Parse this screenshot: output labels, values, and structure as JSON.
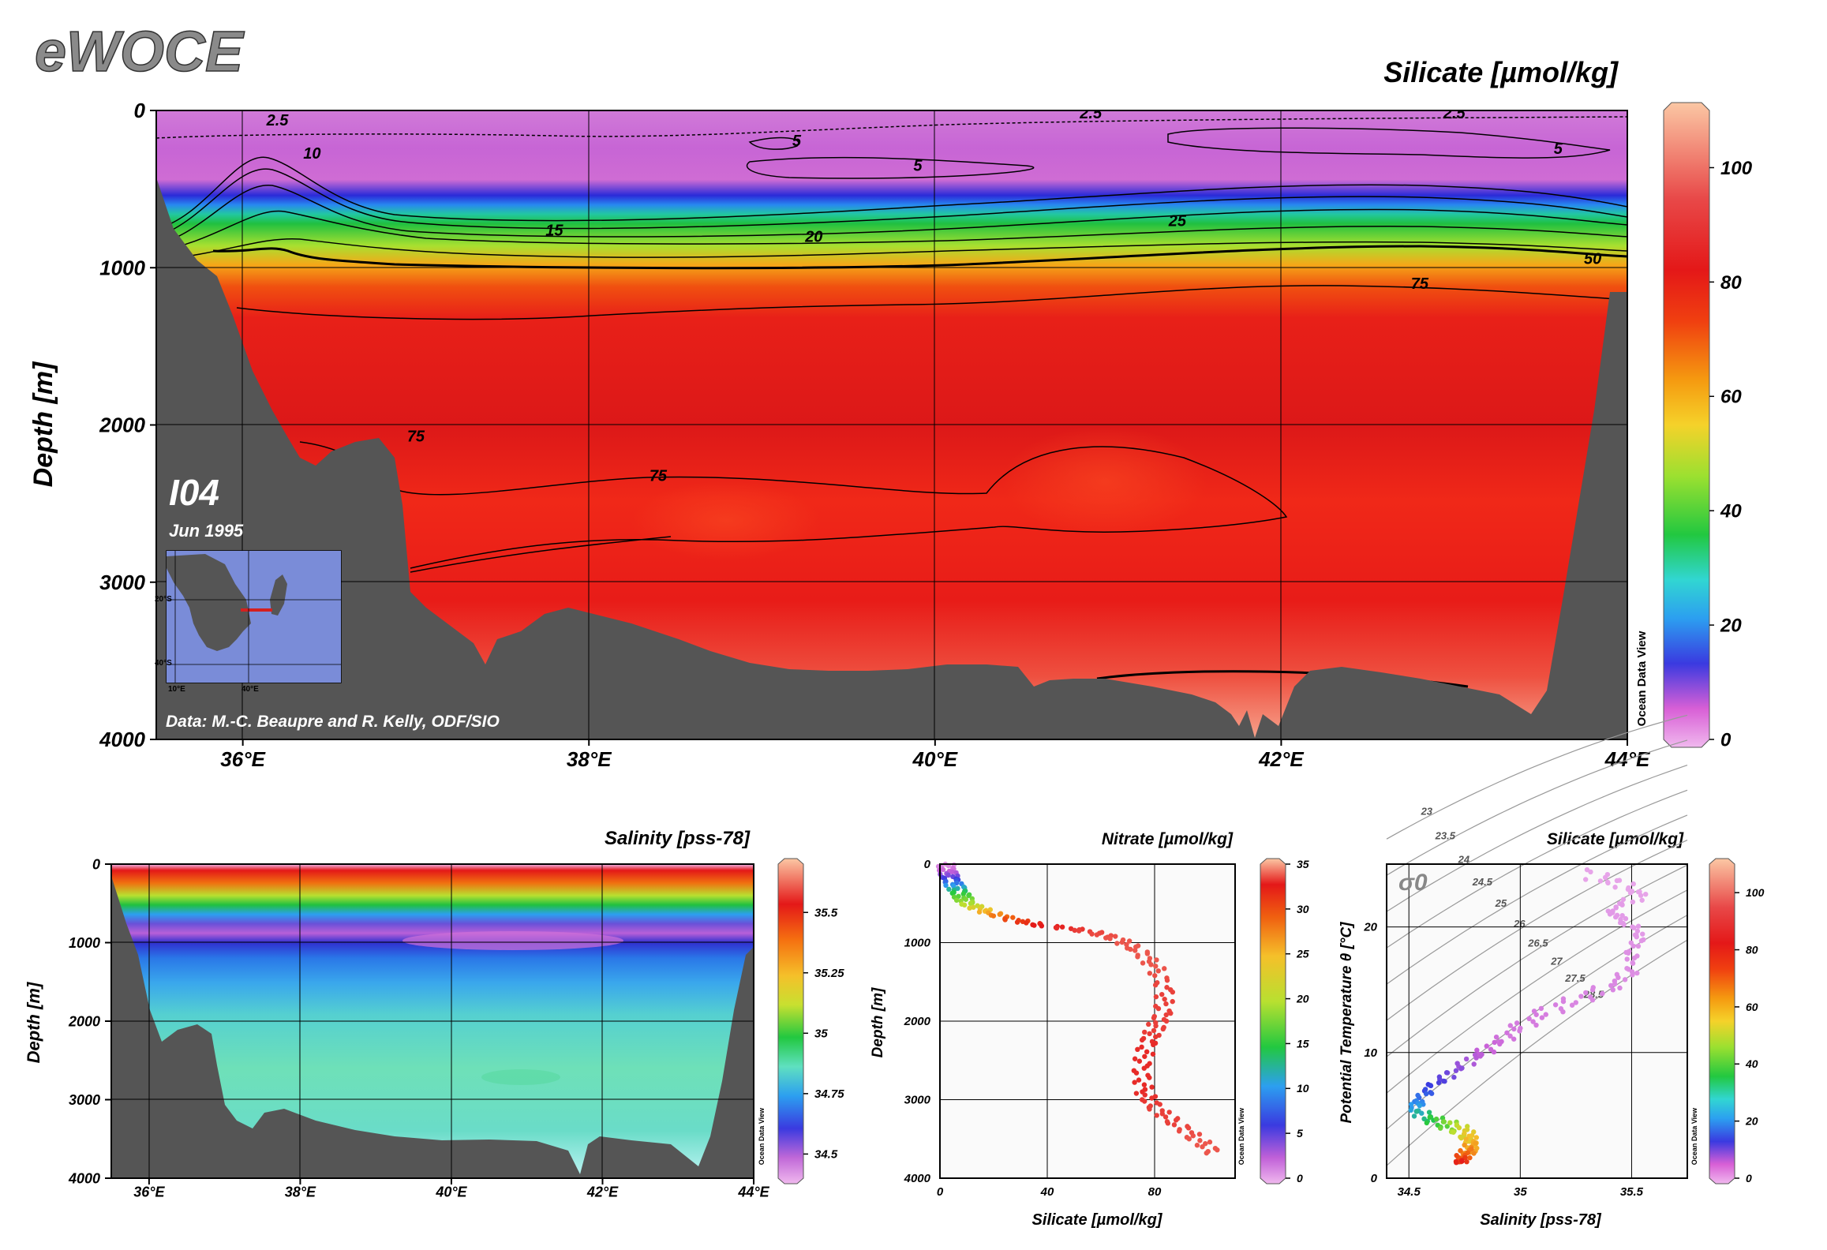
{
  "app": {
    "logo": "eWOCE",
    "section_name": "I04",
    "section_date": "Jun 1995",
    "credit": "Data: M.-C. Beaupre and R. Kelly, ODF/SIO",
    "odv_label": "Ocean Data View"
  },
  "colors": {
    "land": "#555555",
    "inset_ocean": "#7a8cd8",
    "inset_land": "#555555",
    "section_track": "#d42020"
  },
  "inset": {
    "lat_labels": [
      "20°S",
      "40°S"
    ],
    "lon_labels": [
      "10°E",
      "40°E"
    ]
  },
  "chart_data": [
    {
      "id": "main-silicate-section",
      "type": "heatmap",
      "title": "Silicate [µmol/kg]",
      "ylabel": "Depth [m]",
      "xlabel": "",
      "x_ticks": [
        "36°E",
        "38°E",
        "40°E",
        "42°E",
        "44°E"
      ],
      "x_tick_values": [
        36,
        38,
        40,
        42,
        44
      ],
      "y_ticks": [
        "0",
        "1000",
        "2000",
        "3000",
        "4000"
      ],
      "y_tick_values": [
        0,
        1000,
        2000,
        3000,
        4000
      ],
      "xlim": [
        35.5,
        44
      ],
      "ylim": [
        0,
        4000
      ],
      "y_inverted": true,
      "grid": true,
      "colorbar": {
        "min": 0,
        "max": 110,
        "ticks": [
          "0",
          "20",
          "40",
          "60",
          "80",
          "100"
        ],
        "tick_values": [
          0,
          20,
          40,
          60,
          80,
          100
        ]
      },
      "contour_labels": [
        {
          "label": "2.5",
          "lon": 36.2,
          "depth": 60
        },
        {
          "label": "10",
          "lon": 36.4,
          "depth": 270
        },
        {
          "label": "5",
          "lon": 39.2,
          "depth": 190
        },
        {
          "label": "5",
          "lon": 39.9,
          "depth": 350
        },
        {
          "label": "2.5",
          "lon": 40.9,
          "depth": 15
        },
        {
          "label": "2.5",
          "lon": 43.0,
          "depth": 15
        },
        {
          "label": "5",
          "lon": 43.6,
          "depth": 240
        },
        {
          "label": "15",
          "lon": 37.8,
          "depth": 760
        },
        {
          "label": "20",
          "lon": 39.3,
          "depth": 800
        },
        {
          "label": "25",
          "lon": 41.4,
          "depth": 700
        },
        {
          "label": "50",
          "lon": 43.8,
          "depth": 940
        },
        {
          "label": "75",
          "lon": 42.8,
          "depth": 1100
        },
        {
          "label": "75",
          "lon": 37.0,
          "depth": 2070
        },
        {
          "label": "75",
          "lon": 38.4,
          "depth": 2320
        }
      ]
    },
    {
      "id": "salinity-section",
      "type": "heatmap",
      "title": "Salinity [pss-78]",
      "ylabel": "Depth [m]",
      "xlabel": "",
      "x_ticks": [
        "36°E",
        "38°E",
        "40°E",
        "42°E",
        "44°E"
      ],
      "x_tick_values": [
        36,
        38,
        40,
        42,
        44
      ],
      "y_ticks": [
        "0",
        "1000",
        "2000",
        "3000",
        "4000"
      ],
      "y_tick_values": [
        0,
        1000,
        2000,
        3000,
        4000
      ],
      "xlim": [
        35.5,
        44
      ],
      "ylim": [
        0,
        4000
      ],
      "y_inverted": true,
      "grid": true,
      "colorbar": {
        "min": 34.4,
        "max": 35.7,
        "ticks": [
          "34.5",
          "34.75",
          "35",
          "35.25",
          "35.5"
        ],
        "tick_values": [
          34.5,
          34.75,
          35,
          35.25,
          35.5
        ]
      }
    },
    {
      "id": "silicate-depth-profile",
      "type": "scatter",
      "title": "Nitrate [µmol/kg]",
      "xlabel": "Silicate [µmol/kg]",
      "ylabel": "Depth [m]",
      "x_ticks": [
        "0",
        "40",
        "80"
      ],
      "x_tick_values": [
        0,
        40,
        80
      ],
      "y_ticks": [
        "0",
        "1000",
        "2000",
        "3000",
        "4000"
      ],
      "y_tick_values": [
        0,
        1000,
        2000,
        3000,
        4000
      ],
      "xlim": [
        0,
        110
      ],
      "ylim": [
        0,
        4000
      ],
      "y_inverted": true,
      "grid": true,
      "color_variable_range": [
        0,
        35
      ],
      "colorbar": {
        "min": 0,
        "max": 35,
        "ticks": [
          "0",
          "5",
          "10",
          "15",
          "20",
          "25",
          "30",
          "35"
        ],
        "tick_values": [
          0,
          5,
          10,
          15,
          20,
          25,
          30,
          35
        ]
      },
      "profile": [
        {
          "depth": 0,
          "x": 2,
          "c": 1
        },
        {
          "depth": 100,
          "x": 3,
          "c": 3
        },
        {
          "depth": 200,
          "x": 4,
          "c": 6
        },
        {
          "depth": 300,
          "x": 6,
          "c": 10
        },
        {
          "depth": 400,
          "x": 8,
          "c": 14
        },
        {
          "depth": 500,
          "x": 10,
          "c": 17
        },
        {
          "depth": 600,
          "x": 17,
          "c": 22
        },
        {
          "depth": 700,
          "x": 26,
          "c": 27
        },
        {
          "depth": 780,
          "x": 38,
          "c": 30
        },
        {
          "depth": 850,
          "x": 55,
          "c": 32
        },
        {
          "depth": 950,
          "x": 66,
          "c": 33
        },
        {
          "depth": 1100,
          "x": 74,
          "c": 33
        },
        {
          "depth": 1300,
          "x": 80,
          "c": 33
        },
        {
          "depth": 1600,
          "x": 84,
          "c": 32
        },
        {
          "depth": 1900,
          "x": 83,
          "c": 32
        },
        {
          "depth": 2100,
          "x": 80,
          "c": 32
        },
        {
          "depth": 2300,
          "x": 77,
          "c": 31
        },
        {
          "depth": 2600,
          "x": 75,
          "c": 31
        },
        {
          "depth": 2900,
          "x": 76,
          "c": 31
        },
        {
          "depth": 3100,
          "x": 80,
          "c": 32
        },
        {
          "depth": 3300,
          "x": 88,
          "c": 32
        },
        {
          "depth": 3500,
          "x": 96,
          "c": 33
        },
        {
          "depth": 3700,
          "x": 103,
          "c": 33
        }
      ]
    },
    {
      "id": "ts-diagram",
      "type": "scatter",
      "title": "Silicate [µmol/kg]",
      "xlabel": "Salinity [pss-78]",
      "ylabel": "Potential Temperature θ [°C]",
      "x_ticks": [
        "34.5",
        "35",
        "35.5"
      ],
      "x_tick_values": [
        34.5,
        35,
        35.5
      ],
      "y_ticks": [
        "0",
        "10",
        "20"
      ],
      "y_tick_values": [
        0,
        10,
        20
      ],
      "xlim": [
        34.4,
        35.75
      ],
      "ylim": [
        0,
        25
      ],
      "grid": true,
      "isopycnal_label": "σ0",
      "isopycnals": [
        "23",
        "23.5",
        "24",
        "24.5",
        "25",
        "26",
        "26.5",
        "27",
        "27.5",
        "28.5"
      ],
      "color_variable_range": [
        0,
        110
      ],
      "colorbar": {
        "min": 0,
        "max": 110,
        "ticks": [
          "0",
          "20",
          "40",
          "60",
          "80",
          "100"
        ],
        "tick_values": [
          0,
          20,
          40,
          60,
          80,
          100
        ]
      },
      "profile": [
        {
          "s": 35.3,
          "t": 24.2,
          "c": 2
        },
        {
          "s": 35.45,
          "t": 23.5,
          "c": 2
        },
        {
          "s": 35.55,
          "t": 22.5,
          "c": 2
        },
        {
          "s": 35.4,
          "t": 21.5,
          "c": 3
        },
        {
          "s": 35.45,
          "t": 20.5,
          "c": 3
        },
        {
          "s": 35.55,
          "t": 19.5,
          "c": 3
        },
        {
          "s": 35.5,
          "t": 18.0,
          "c": 4
        },
        {
          "s": 35.5,
          "t": 16.5,
          "c": 4
        },
        {
          "s": 35.4,
          "t": 15.2,
          "c": 5
        },
        {
          "s": 35.25,
          "t": 14.2,
          "c": 5
        },
        {
          "s": 35.1,
          "t": 13.1,
          "c": 6
        },
        {
          "s": 34.98,
          "t": 11.8,
          "c": 6
        },
        {
          "s": 34.88,
          "t": 10.6,
          "c": 8
        },
        {
          "s": 34.78,
          "t": 9.5,
          "c": 10
        },
        {
          "s": 34.68,
          "t": 8.3,
          "c": 14
        },
        {
          "s": 34.6,
          "t": 7.2,
          "c": 18
        },
        {
          "s": 34.55,
          "t": 6.2,
          "c": 25
        },
        {
          "s": 34.52,
          "t": 5.4,
          "c": 30
        },
        {
          "s": 34.58,
          "t": 4.8,
          "c": 38
        },
        {
          "s": 34.65,
          "t": 4.3,
          "c": 45
        },
        {
          "s": 34.72,
          "t": 4.0,
          "c": 55
        },
        {
          "s": 34.76,
          "t": 3.5,
          "c": 62
        },
        {
          "s": 34.78,
          "t": 3.0,
          "c": 68
        },
        {
          "s": 34.78,
          "t": 2.5,
          "c": 72
        },
        {
          "s": 34.76,
          "t": 2.0,
          "c": 78
        },
        {
          "s": 34.74,
          "t": 1.6,
          "c": 85
        },
        {
          "s": 34.73,
          "t": 1.2,
          "c": 95
        }
      ]
    }
  ]
}
